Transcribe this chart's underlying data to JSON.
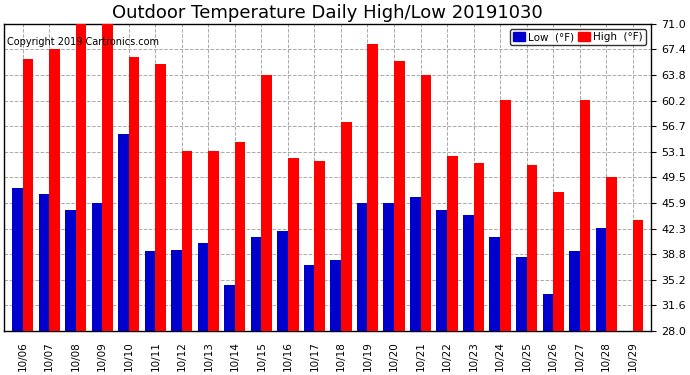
{
  "title": "Outdoor Temperature Daily High/Low 20191030",
  "copyright": "Copyright 2019 Cartronics.com",
  "legend_low": "Low  (°F)",
  "legend_high": "High  (°F)",
  "dates": [
    "10/06",
    "10/07",
    "10/08",
    "10/09",
    "10/10",
    "10/11",
    "10/12",
    "10/13",
    "10/14",
    "10/15",
    "10/16",
    "10/17",
    "10/18",
    "10/19",
    "10/20",
    "10/21",
    "10/22",
    "10/23",
    "10/24",
    "10/25",
    "10/26",
    "10/27",
    "10/28",
    "10/29"
  ],
  "high": [
    66.0,
    67.4,
    71.0,
    71.0,
    66.4,
    65.4,
    53.2,
    53.2,
    54.5,
    63.8,
    52.2,
    51.8,
    57.2,
    68.2,
    65.8,
    63.8,
    52.5,
    51.5,
    60.4,
    51.2,
    47.5,
    60.4,
    49.5,
    43.5
  ],
  "low": [
    48.0,
    47.2,
    45.0,
    46.0,
    55.6,
    39.2,
    39.4,
    40.4,
    34.4,
    41.2,
    42.0,
    37.2,
    38.0,
    46.0,
    46.0,
    46.8,
    45.0,
    44.2,
    41.2,
    38.4,
    33.2,
    39.2,
    42.4,
    28.0
  ],
  "ylim": [
    28.0,
    71.0
  ],
  "yticks": [
    28.0,
    31.6,
    35.2,
    38.8,
    42.3,
    45.9,
    49.5,
    53.1,
    56.7,
    60.2,
    63.8,
    67.4,
    71.0
  ],
  "high_color": "#ff0000",
  "low_color": "#0000cc",
  "background_color": "#ffffff",
  "plot_bg_color": "#ffffff",
  "grid_color": "#aaaaaa",
  "title_fontsize": 13,
  "bar_width": 0.4
}
